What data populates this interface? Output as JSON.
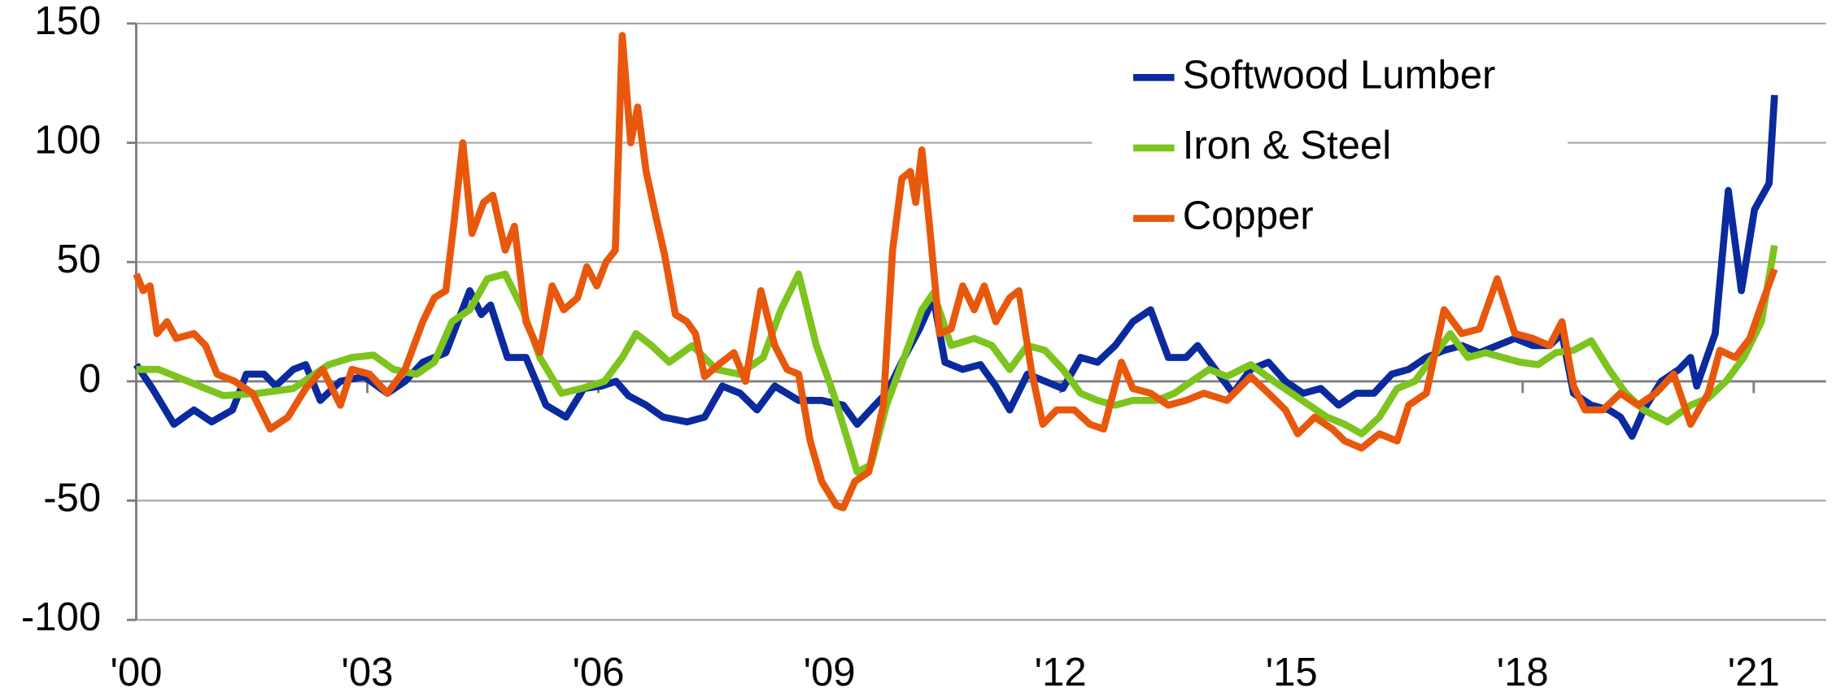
{
  "chart_data": {
    "type": "line",
    "xlim": [
      2000,
      2021.94
    ],
    "ylim": [
      -100,
      150
    ],
    "yticks": [
      -100,
      -50,
      0,
      50,
      100,
      150
    ],
    "xticks": [
      {
        "value": 2000,
        "label": "'00"
      },
      {
        "value": 2003,
        "label": "'03"
      },
      {
        "value": 2006,
        "label": "'06"
      },
      {
        "value": 2009,
        "label": "'09"
      },
      {
        "value": 2012,
        "label": "'12"
      },
      {
        "value": 2015,
        "label": "'15"
      },
      {
        "value": 2018,
        "label": "'18"
      },
      {
        "value": 2021,
        "label": "'21"
      }
    ],
    "grid": true,
    "legend": "upper right",
    "series": [
      {
        "name": "Softwood Lumber",
        "color": "#0a2a9e",
        "x": [
          2000.0,
          2000.21,
          2000.49,
          2000.75,
          2000.98,
          2001.25,
          2001.43,
          2001.66,
          2001.81,
          2002.04,
          2002.2,
          2002.39,
          2002.65,
          2002.96,
          2003.26,
          2003.49,
          2003.72,
          2004.02,
          2004.33,
          2004.48,
          2004.6,
          2004.82,
          2005.06,
          2005.32,
          2005.58,
          2005.81,
          2006.04,
          2006.23,
          2006.39,
          2006.62,
          2006.84,
          2007.15,
          2007.38,
          2007.61,
          2007.84,
          2008.06,
          2008.29,
          2008.6,
          2008.9,
          2009.18,
          2009.36,
          2009.59,
          2009.74,
          2009.97,
          2010.17,
          2010.35,
          2010.5,
          2010.73,
          2010.96,
          2011.16,
          2011.34,
          2011.57,
          2011.8,
          2012.03,
          2012.26,
          2012.48,
          2012.71,
          2012.94,
          2013.17,
          2013.4,
          2013.63,
          2013.78,
          2014.01,
          2014.24,
          2014.47,
          2014.7,
          2014.92,
          2015.15,
          2015.38,
          2015.61,
          2015.84,
          2016.07,
          2016.3,
          2016.52,
          2016.75,
          2016.98,
          2017.21,
          2017.44,
          2017.67,
          2017.9,
          2018.13,
          2018.35,
          2018.51,
          2018.66,
          2018.89,
          2019.12,
          2019.27,
          2019.42,
          2019.57,
          2019.8,
          2020.03,
          2020.18,
          2020.26,
          2020.5,
          2020.67,
          2020.84,
          2021.01,
          2021.2,
          2021.27
        ],
        "values": [
          7,
          -3,
          -18,
          -12,
          -17,
          -12,
          3,
          3,
          -2,
          5,
          7,
          -8,
          0,
          2,
          -5,
          0,
          8,
          12,
          38,
          28,
          32,
          10,
          10,
          -10,
          -15,
          -3,
          -2,
          0,
          -6,
          -10,
          -15,
          -17,
          -15,
          -2,
          -5,
          -12,
          -2,
          -8,
          -8,
          -10,
          -18,
          -10,
          -5,
          10,
          22,
          35,
          8,
          5,
          7,
          -2,
          -12,
          3,
          0,
          -3,
          10,
          8,
          15,
          25,
          30,
          10,
          10,
          15,
          5,
          -5,
          5,
          8,
          0,
          -5,
          -3,
          -10,
          -5,
          -5,
          3,
          5,
          10,
          13,
          15,
          12,
          15,
          18,
          15,
          15,
          20,
          -5,
          -10,
          -12,
          -15,
          -23,
          -12,
          0,
          5,
          10,
          -2,
          20,
          80,
          38,
          72,
          83,
          120
        ]
      },
      {
        "name": "Iron & Steel",
        "color": "#7dc41f",
        "x": [
          2000.0,
          2000.29,
          2000.67,
          2001.13,
          2001.59,
          2002.04,
          2002.5,
          2002.8,
          2003.08,
          2003.34,
          2003.64,
          2003.87,
          2004.1,
          2004.33,
          2004.56,
          2004.79,
          2005.02,
          2005.24,
          2005.52,
          2005.78,
          2006.08,
          2006.31,
          2006.49,
          2006.69,
          2006.92,
          2007.22,
          2007.53,
          2007.83,
          2008.14,
          2008.37,
          2008.6,
          2008.83,
          2009.05,
          2009.24,
          2009.36,
          2009.54,
          2009.74,
          2009.97,
          2010.2,
          2010.35,
          2010.58,
          2010.88,
          2011.11,
          2011.34,
          2011.57,
          2011.8,
          2012.03,
          2012.26,
          2012.48,
          2012.71,
          2012.94,
          2013.25,
          2013.48,
          2013.7,
          2013.93,
          2014.16,
          2014.47,
          2014.77,
          2015.0,
          2015.23,
          2015.46,
          2015.69,
          2015.91,
          2016.14,
          2016.37,
          2016.6,
          2016.83,
          2017.06,
          2017.29,
          2017.52,
          2017.74,
          2017.97,
          2018.2,
          2018.43,
          2018.66,
          2018.89,
          2019.12,
          2019.34,
          2019.57,
          2019.88,
          2020.18,
          2020.41,
          2020.64,
          2020.87,
          2021.1,
          2021.27
        ],
        "values": [
          5,
          5,
          0,
          -6,
          -5,
          -3,
          7,
          10,
          11,
          5,
          3,
          8,
          25,
          30,
          43,
          45,
          30,
          10,
          -5,
          -3,
          0,
          10,
          20,
          15,
          8,
          15,
          5,
          3,
          10,
          30,
          45,
          15,
          -5,
          -25,
          -38,
          -35,
          -10,
          10,
          30,
          37,
          15,
          18,
          15,
          5,
          15,
          13,
          5,
          -5,
          -8,
          -10,
          -8,
          -8,
          -5,
          0,
          5,
          2,
          7,
          0,
          -5,
          -10,
          -15,
          -18,
          -22,
          -15,
          -3,
          0,
          10,
          20,
          10,
          12,
          10,
          8,
          7,
          12,
          13,
          17,
          5,
          -5,
          -12,
          -17,
          -10,
          -7,
          0,
          10,
          25,
          57
        ]
      },
      {
        "name": "Copper",
        "color": "#e8580c",
        "x": [
          2000.0,
          2000.09,
          2000.18,
          2000.27,
          2000.4,
          2000.52,
          2000.75,
          2000.9,
          2001.05,
          2001.28,
          2001.51,
          2001.74,
          2001.97,
          2002.2,
          2002.42,
          2002.65,
          2002.8,
          2003.03,
          2003.26,
          2003.49,
          2003.72,
          2003.87,
          2004.02,
          2004.12,
          2004.24,
          2004.36,
          2004.51,
          2004.63,
          2004.79,
          2004.91,
          2005.06,
          2005.24,
          2005.4,
          2005.55,
          2005.73,
          2005.85,
          2005.98,
          2006.1,
          2006.22,
          2006.31,
          2006.42,
          2006.51,
          2006.62,
          2006.74,
          2006.86,
          2007.0,
          2007.15,
          2007.26,
          2007.38,
          2007.56,
          2007.76,
          2007.91,
          2008.11,
          2008.29,
          2008.45,
          2008.6,
          2008.75,
          2008.9,
          2009.09,
          2009.18,
          2009.33,
          2009.51,
          2009.7,
          2009.82,
          2009.94,
          2010.05,
          2010.12,
          2010.2,
          2010.3,
          2010.43,
          2010.58,
          2010.73,
          2010.88,
          2011.01,
          2011.16,
          2011.34,
          2011.46,
          2011.62,
          2011.77,
          2011.95,
          2012.18,
          2012.38,
          2012.56,
          2012.79,
          2012.94,
          2013.17,
          2013.4,
          2013.63,
          2013.86,
          2014.16,
          2014.47,
          2014.7,
          2014.92,
          2015.08,
          2015.3,
          2015.53,
          2015.69,
          2015.91,
          2016.14,
          2016.37,
          2016.52,
          2016.75,
          2016.98,
          2017.21,
          2017.44,
          2017.67,
          2017.9,
          2018.13,
          2018.35,
          2018.51,
          2018.66,
          2018.81,
          2019.04,
          2019.27,
          2019.5,
          2019.73,
          2019.96,
          2020.18,
          2020.41,
          2020.56,
          2020.76,
          2020.95,
          2021.1,
          2021.27
        ],
        "values": [
          45,
          38,
          40,
          20,
          25,
          18,
          20,
          15,
          3,
          0,
          -5,
          -20,
          -15,
          -3,
          5,
          -10,
          5,
          3,
          -5,
          5,
          25,
          35,
          38,
          65,
          100,
          62,
          75,
          78,
          55,
          65,
          25,
          12,
          40,
          30,
          35,
          48,
          40,
          50,
          55,
          145,
          100,
          115,
          88,
          70,
          53,
          28,
          25,
          20,
          2,
          7,
          12,
          0,
          38,
          15,
          5,
          3,
          -25,
          -42,
          -52,
          -53,
          -42,
          -38,
          -10,
          55,
          85,
          88,
          75,
          97,
          65,
          20,
          22,
          40,
          30,
          40,
          25,
          35,
          38,
          5,
          -18,
          -12,
          -12,
          -18,
          -20,
          8,
          -3,
          -5,
          -10,
          -8,
          -5,
          -8,
          2,
          -5,
          -12,
          -22,
          -15,
          -20,
          -25,
          -28,
          -22,
          -25,
          -10,
          -5,
          30,
          20,
          22,
          43,
          20,
          18,
          15,
          25,
          -2,
          -12,
          -12,
          -5,
          -10,
          -5,
          3,
          -18,
          -5,
          13,
          10,
          18,
          32,
          47
        ]
      }
    ]
  }
}
